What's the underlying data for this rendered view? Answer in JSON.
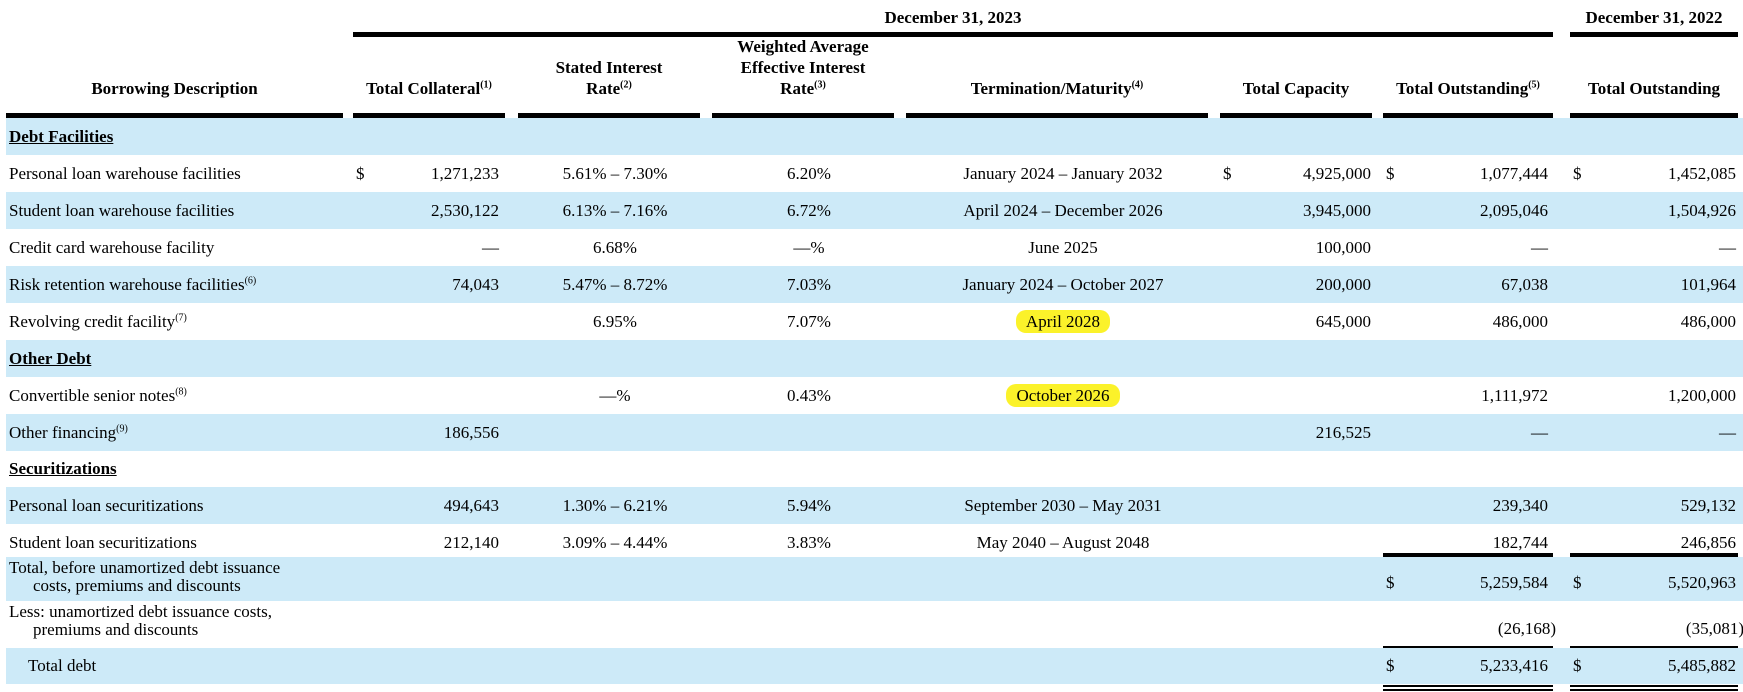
{
  "header": {
    "period_2023": "December 31, 2023",
    "period_2022": "December 31, 2022",
    "col_description": "Borrowing Description",
    "col_collateral": "Total Collateral",
    "col_collateral_note": "(1)",
    "col_stated_rate_1": "Stated Interest",
    "col_stated_rate_2": "Rate",
    "col_stated_rate_note": "(2)",
    "col_weighted_1": "Weighted Average",
    "col_weighted_2": "Effective Interest",
    "col_weighted_3": "Rate",
    "col_weighted_note": "(3)",
    "col_termination": "Termination/Maturity",
    "col_termination_note": "(4)",
    "col_capacity": "Total Capacity",
    "col_outstanding": "Total Outstanding",
    "col_outstanding_note": "(5)",
    "col_outstanding_2022": "Total Outstanding"
  },
  "currency_symbol": "$",
  "highlight_color": "#fbf22a",
  "row_shade_color": "#cdeaf8",
  "sections": {
    "debt_facilities": "Debt Facilities",
    "other_debt": "Other Debt",
    "securitizations": "Securitizations"
  },
  "rows": {
    "personal_warehouse": {
      "label": "Personal loan warehouse facilities",
      "note": "",
      "collateral": "1,271,233",
      "stated": "5.61% – 7.30%",
      "weighted": "6.20%",
      "maturity": "January 2024 – January 2032",
      "capacity": "4,925,000",
      "outstanding": "1,077,444",
      "outstanding_2022": "1,452,085"
    },
    "student_warehouse": {
      "label": "Student loan warehouse facilities",
      "note": "",
      "collateral": "2,530,122",
      "stated": "6.13% – 7.16%",
      "weighted": "6.72%",
      "maturity": "April 2024 – December 2026",
      "capacity": "3,945,000",
      "outstanding": "2,095,046",
      "outstanding_2022": "1,504,926"
    },
    "credit_card_warehouse": {
      "label": "Credit card warehouse facility",
      "note": "",
      "collateral": "—",
      "stated": "6.68%",
      "weighted": "—%",
      "maturity": "June 2025",
      "capacity": "100,000",
      "outstanding": "—",
      "outstanding_2022": "—"
    },
    "risk_retention": {
      "label": "Risk retention warehouse facilities",
      "note": "(6)",
      "collateral": "74,043",
      "stated": "5.47% – 8.72%",
      "weighted": "7.03%",
      "maturity": "January 2024 – October 2027",
      "capacity": "200,000",
      "outstanding": "67,038",
      "outstanding_2022": "101,964"
    },
    "revolving": {
      "label": "Revolving credit facility",
      "note": "(7)",
      "collateral": "",
      "stated": "6.95%",
      "weighted": "7.07%",
      "maturity": "April 2028",
      "capacity": "645,000",
      "outstanding": "486,000",
      "outstanding_2022": "486,000"
    },
    "convertible": {
      "label": "Convertible senior notes",
      "note": "(8)",
      "collateral": "",
      "stated": "—%",
      "weighted": "0.43%",
      "maturity": "October 2026",
      "capacity": "",
      "outstanding": "1,111,972",
      "outstanding_2022": "1,200,000"
    },
    "other_financing": {
      "label": "Other financing",
      "note": "(9)",
      "collateral": "186,556",
      "stated": "",
      "weighted": "",
      "maturity": "",
      "capacity": "216,525",
      "outstanding": "—",
      "outstanding_2022": "—"
    },
    "personal_securitizations": {
      "label": "Personal loan securitizations",
      "note": "",
      "collateral": "494,643",
      "stated": "1.30% – 6.21%",
      "weighted": "5.94%",
      "maturity": "September 2030 – May 2031",
      "capacity": "",
      "outstanding": "239,340",
      "outstanding_2022": "529,132"
    },
    "student_securitizations": {
      "label": "Student loan securitizations",
      "note": "",
      "collateral": "212,140",
      "stated": "3.09% – 4.44%",
      "weighted": "3.83%",
      "maturity": "May 2040 – August 2048",
      "capacity": "",
      "outstanding": "182,744",
      "outstanding_2022": "246,856"
    }
  },
  "totals": {
    "before_label_1": "Total, before unamortized debt issuance",
    "before_label_2": "costs, premiums and discounts",
    "before_outstanding": "5,259,584",
    "before_outstanding_2022": "5,520,963",
    "less_label_1": "Less: unamortized debt issuance costs,",
    "less_label_2": "premiums and discounts",
    "less_outstanding": "(26,168)",
    "less_outstanding_2022": "(35,081)",
    "total_label": "Total debt",
    "total_outstanding": "5,233,416",
    "total_outstanding_2022": "5,485,882"
  }
}
